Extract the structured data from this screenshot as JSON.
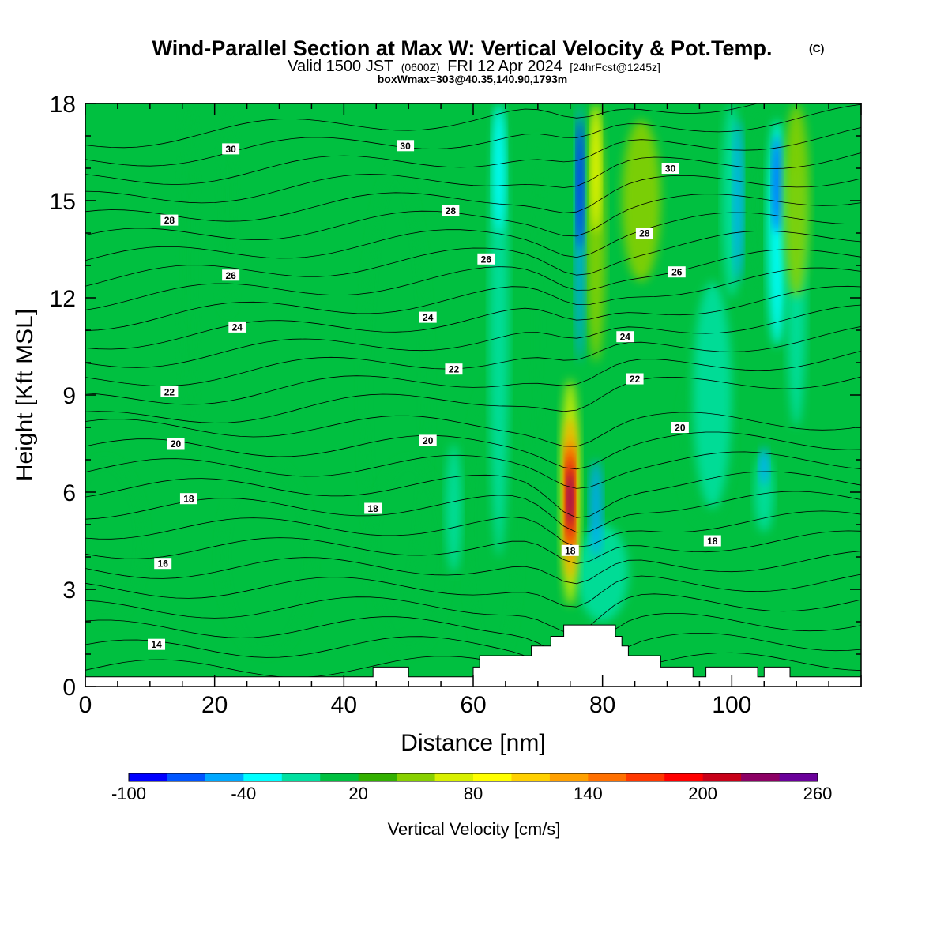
{
  "chart_data": {
    "type": "heatmap",
    "title": "Wind-Parallel Section at Max W: Vertical Velocity & Pot.Temp.",
    "title_mark": "(C)",
    "subtitle": {
      "prefix": "Valid 1500 JST",
      "utc": "(0600Z)",
      "date": "FRI 12 Apr 2024",
      "forecast": "[24hrFcst@1245z]"
    },
    "subtitle2": "boxWmax=303@40.35,140.90,1793m",
    "xlabel": "Distance [nm]",
    "ylabel": "Height [Kft MSL]",
    "xlim": [
      0,
      120
    ],
    "ylim": [
      0,
      18
    ],
    "x_ticks": [
      0,
      20,
      40,
      60,
      80,
      100
    ],
    "y_ticks": [
      0,
      3,
      6,
      9,
      12,
      15,
      18
    ],
    "colorbar": {
      "title": "Vertical Velocity [cm/s]",
      "min": -100,
      "max": 260,
      "step": 20,
      "tick_values": [
        -100,
        -40,
        20,
        80,
        140,
        200,
        260
      ],
      "colors": [
        "#0000ff",
        "#0055ff",
        "#00a8ff",
        "#00ffff",
        "#00e0a0",
        "#00c040",
        "#33b000",
        "#88d000",
        "#d8f000",
        "#ffff00",
        "#ffd000",
        "#ffa000",
        "#ff7000",
        "#ff3800",
        "#ff0000",
        "#c80018",
        "#8c0064",
        "#6a009a"
      ]
    },
    "theta_labels": [
      {
        "x": 22.5,
        "y": 16.6,
        "value": "30"
      },
      {
        "x": 49.5,
        "y": 16.7,
        "value": "30"
      },
      {
        "x": 90.5,
        "y": 16.0,
        "value": "30"
      },
      {
        "x": 13,
        "y": 14.4,
        "value": "28"
      },
      {
        "x": 56.5,
        "y": 14.7,
        "value": "28"
      },
      {
        "x": 86.5,
        "y": 14.0,
        "value": "28"
      },
      {
        "x": 22.5,
        "y": 12.7,
        "value": "26"
      },
      {
        "x": 62,
        "y": 13.2,
        "value": "26"
      },
      {
        "x": 91.5,
        "y": 12.8,
        "value": "26"
      },
      {
        "x": 23.5,
        "y": 11.1,
        "value": "24"
      },
      {
        "x": 53,
        "y": 11.4,
        "value": "24"
      },
      {
        "x": 83.5,
        "y": 10.8,
        "value": "24"
      },
      {
        "x": 13,
        "y": 9.1,
        "value": "22"
      },
      {
        "x": 57,
        "y": 9.8,
        "value": "22"
      },
      {
        "x": 85,
        "y": 9.5,
        "value": "22"
      },
      {
        "x": 14,
        "y": 7.5,
        "value": "20"
      },
      {
        "x": 53,
        "y": 7.6,
        "value": "20"
      },
      {
        "x": 92,
        "y": 8.0,
        "value": "20"
      },
      {
        "x": 16,
        "y": 5.8,
        "value": "18"
      },
      {
        "x": 44.5,
        "y": 5.5,
        "value": "18"
      },
      {
        "x": 75,
        "y": 4.2,
        "value": "18"
      },
      {
        "x": 97,
        "y": 4.5,
        "value": "18"
      },
      {
        "x": 12,
        "y": 3.8,
        "value": "16"
      },
      {
        "x": 11,
        "y": 1.3,
        "value": "14"
      }
    ],
    "terrain_steps": [
      [
        0,
        0.3
      ],
      [
        44.5,
        0.3
      ],
      [
        44.5,
        0.6
      ],
      [
        50,
        0.6
      ],
      [
        50,
        0.3
      ],
      [
        60,
        0.3
      ],
      [
        60,
        0.6
      ],
      [
        61,
        0.6
      ],
      [
        61,
        0.95
      ],
      [
        69,
        0.95
      ],
      [
        69,
        1.25
      ],
      [
        72,
        1.25
      ],
      [
        72,
        1.55
      ],
      [
        74,
        1.55
      ],
      [
        74,
        1.9
      ],
      [
        82,
        1.9
      ],
      [
        82,
        1.55
      ],
      [
        83,
        1.55
      ],
      [
        83,
        1.25
      ],
      [
        84,
        1.25
      ],
      [
        84,
        0.95
      ],
      [
        89,
        0.95
      ],
      [
        89,
        0.6
      ],
      [
        94,
        0.6
      ],
      [
        94,
        0.3
      ],
      [
        96,
        0.3
      ],
      [
        96,
        0.6
      ],
      [
        104,
        0.6
      ],
      [
        104,
        0.3
      ],
      [
        105,
        0.3
      ],
      [
        105,
        0.6
      ],
      [
        109,
        0.6
      ],
      [
        109,
        0.3
      ],
      [
        120,
        0.3
      ]
    ]
  }
}
